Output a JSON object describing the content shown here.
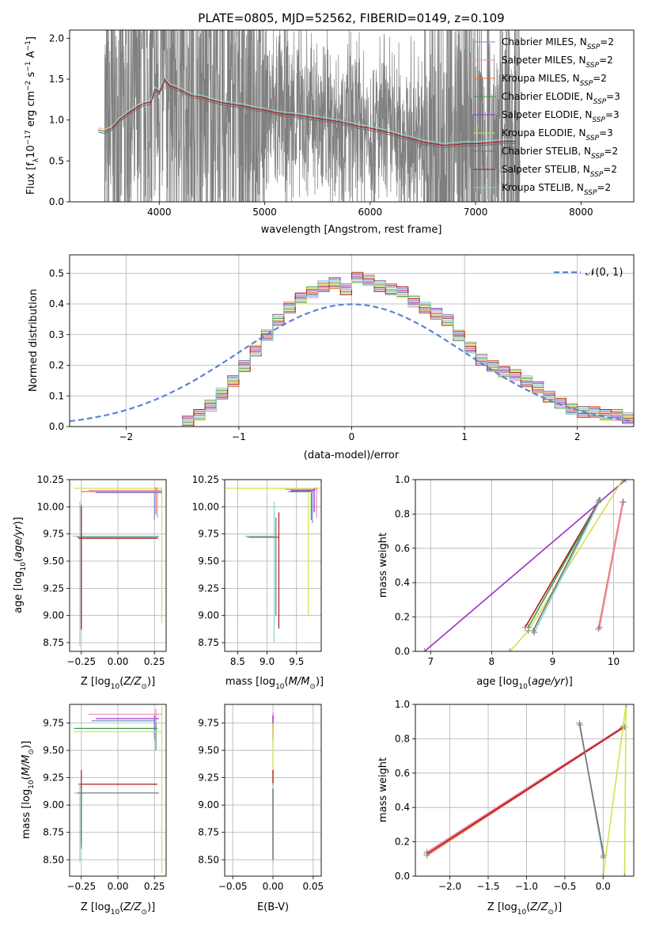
{
  "figure": {
    "title": "PLATE=0805, MJD=52562, FIBERID=0149, z=0.109"
  },
  "colors": {
    "Chabrier MILES": "#6f8fd8",
    "Salpeter MILES": "#f08ac0",
    "Kroupa MILES": "#e8733a",
    "Chabrier ELODIE": "#3f9b3f",
    "Salpeter ELODIE": "#9b30c8",
    "Kroupa ELODIE": "#d6e04a",
    "Chabrier STELIB": "#7a6e6e",
    "Salpeter STELIB": "#b01818",
    "Kroupa STELIB": "#86d4d4",
    "data": "#7f7f7f",
    "normal": "#5b84d6"
  },
  "chart_data": [
    {
      "type": "line",
      "xlabel": "wavelength [Angstrom, rest frame]",
      "ylabel": "Flux [f_λ 10^-17 erg cm^-2 s^-1 A^-1]",
      "xlim": [
        3150,
        8500
      ],
      "ylim": [
        0,
        2.1
      ],
      "xticks": [
        4000,
        5000,
        6000,
        7000,
        8000
      ],
      "yticks": [
        0.0,
        0.5,
        1.0,
        1.5,
        2.0
      ],
      "grid": false,
      "legend_position": "right",
      "legend": [
        {
          "base": "Chabrier MILES, N",
          "sub": "SSP",
          "tail": "=2"
        },
        {
          "base": "Salpeter MILES, N",
          "sub": "SSP",
          "tail": "=2"
        },
        {
          "base": "Kroupa MILES, N",
          "sub": "SSP",
          "tail": "=2"
        },
        {
          "base": "Chabrier ELODIE, N",
          "sub": "SSP",
          "tail": "=3"
        },
        {
          "base": "Salpeter ELODIE, N",
          "sub": "SSP",
          "tail": "=3"
        },
        {
          "base": "Kroupa ELODIE, N",
          "sub": "SSP",
          "tail": "=3"
        },
        {
          "base": "Chabrier STELIB, N",
          "sub": "SSP",
          "tail": "=2"
        },
        {
          "base": "Salpeter STELIB, N",
          "sub": "SSP",
          "tail": "=2"
        },
        {
          "base": "Kroupa STELIB, N",
          "sub": "SSP",
          "tail": "=2"
        }
      ],
      "model_curve": {
        "x": [
          3420,
          3480,
          3550,
          3620,
          3700,
          3780,
          3850,
          3920,
          3960,
          4000,
          4050,
          4100,
          4200,
          4300,
          4400,
          4500,
          4600,
          4700,
          4800,
          4900,
          5000,
          5100,
          5200,
          5300,
          5400,
          5500,
          5600,
          5700,
          5800,
          5900,
          6000,
          6100,
          6200,
          6300,
          6400,
          6500,
          6600,
          6700,
          6800,
          6900,
          7000,
          7100,
          7200,
          7300,
          7380
        ],
        "y": [
          0.88,
          0.86,
          0.9,
          1.0,
          1.08,
          1.15,
          1.2,
          1.22,
          1.38,
          1.34,
          1.5,
          1.42,
          1.37,
          1.3,
          1.28,
          1.24,
          1.21,
          1.19,
          1.17,
          1.14,
          1.12,
          1.09,
          1.07,
          1.06,
          1.04,
          1.02,
          1.0,
          0.98,
          0.95,
          0.92,
          0.9,
          0.87,
          0.84,
          0.8,
          0.77,
          0.73,
          0.71,
          0.69,
          0.7,
          0.71,
          0.71,
          0.72,
          0.73,
          0.74,
          0.74
        ]
      },
      "data_range": [
        3480,
        7420
      ]
    },
    {
      "type": "step",
      "xlabel": "(data-model)/error",
      "ylabel": "Normed distribution",
      "xlim": [
        -2.5,
        2.5
      ],
      "ylim": [
        0,
        0.56
      ],
      "xticks": [
        -2,
        -1,
        0,
        1,
        2
      ],
      "yticks": [
        0.0,
        0.1,
        0.2,
        0.3,
        0.4,
        0.5
      ],
      "grid": true,
      "legend": "𝒩(0, 1)",
      "bin_edges": [
        -1.5,
        -1.4,
        -1.3,
        -1.2,
        -1.1,
        -1.0,
        -0.9,
        -0.8,
        -0.7,
        -0.6,
        -0.5,
        -0.4,
        -0.3,
        -0.2,
        -0.1,
        0.0,
        0.1,
        0.2,
        0.3,
        0.4,
        0.5,
        0.6,
        0.7,
        0.8,
        0.9,
        1.0,
        1.1,
        1.2,
        1.3,
        1.4,
        1.5,
        1.6,
        1.7,
        1.8,
        1.9,
        2.0,
        2.1,
        2.2,
        2.3,
        2.4,
        2.5
      ],
      "histogram": [
        0.02,
        0.04,
        0.07,
        0.11,
        0.15,
        0.2,
        0.25,
        0.3,
        0.35,
        0.39,
        0.42,
        0.44,
        0.46,
        0.47,
        0.45,
        0.49,
        0.48,
        0.46,
        0.45,
        0.44,
        0.41,
        0.39,
        0.37,
        0.35,
        0.3,
        0.26,
        0.22,
        0.2,
        0.18,
        0.17,
        0.15,
        0.13,
        0.1,
        0.08,
        0.06,
        0.05,
        0.05,
        0.04,
        0.04,
        0.03
      ]
    },
    {
      "type": "errorbar",
      "xlabel": "Z [log10(Z/Z⊙)]",
      "ylabel": "age [log10(age/yr)]",
      "xlim": [
        -0.33,
        0.33
      ],
      "ylim": [
        8.67,
        10.25
      ],
      "xticks": [
        -0.25,
        0.0,
        0.25
      ],
      "yticks": [
        8.75,
        9.0,
        9.25,
        9.5,
        9.75,
        10.0,
        10.25
      ],
      "grid": true
    },
    {
      "type": "errorbar",
      "xlabel": "mass [log10(M/M⊙)]",
      "xlim": [
        8.28,
        9.92
      ],
      "ylim": [
        8.67,
        10.25
      ],
      "xticks": [
        8.5,
        9.0,
        9.5
      ],
      "yticks": [
        8.75,
        9.0,
        9.25,
        9.5,
        9.75,
        10.0,
        10.25
      ],
      "grid": true
    },
    {
      "type": "line",
      "xlabel": "age  [log10(age/yr)]",
      "ylabel": "mass weight",
      "xlim": [
        6.75,
        10.33
      ],
      "ylim": [
        0,
        1.0
      ],
      "xticks": [
        7,
        8,
        9,
        10
      ],
      "yticks": [
        0.0,
        0.2,
        0.4,
        0.6,
        0.8,
        1.0
      ],
      "grid": true
    },
    {
      "type": "errorbar",
      "xlabel": "Z [log10(Z/Z⊙)]",
      "ylabel": "mass [log10(M/M⊙)]",
      "xlim": [
        -0.33,
        0.33
      ],
      "ylim": [
        8.35,
        9.92
      ],
      "xticks": [
        -0.25,
        0.0,
        0.25
      ],
      "yticks": [
        8.5,
        8.75,
        9.0,
        9.25,
        9.5,
        9.75
      ],
      "grid": true
    },
    {
      "type": "errorbar",
      "xlabel": "E(B-V)",
      "xlim": [
        -0.06,
        0.06
      ],
      "ylim": [
        8.35,
        9.92
      ],
      "xticks": [
        -0.05,
        0.0,
        0.05
      ],
      "yticks": [
        8.5,
        8.75,
        9.0,
        9.25,
        9.5,
        9.75
      ],
      "grid": true
    },
    {
      "type": "line",
      "xlabel": "Z [log10(Z/Z⊙)]",
      "ylabel": "mass weight",
      "xlim": [
        -2.45,
        0.4
      ],
      "ylim": [
        0,
        1.0
      ],
      "xticks": [
        -2.0,
        -1.5,
        -1.0,
        -0.5,
        0.0
      ],
      "yticks": [
        0.0,
        0.2,
        0.4,
        0.6,
        0.8,
        1.0
      ],
      "grid": true
    }
  ]
}
